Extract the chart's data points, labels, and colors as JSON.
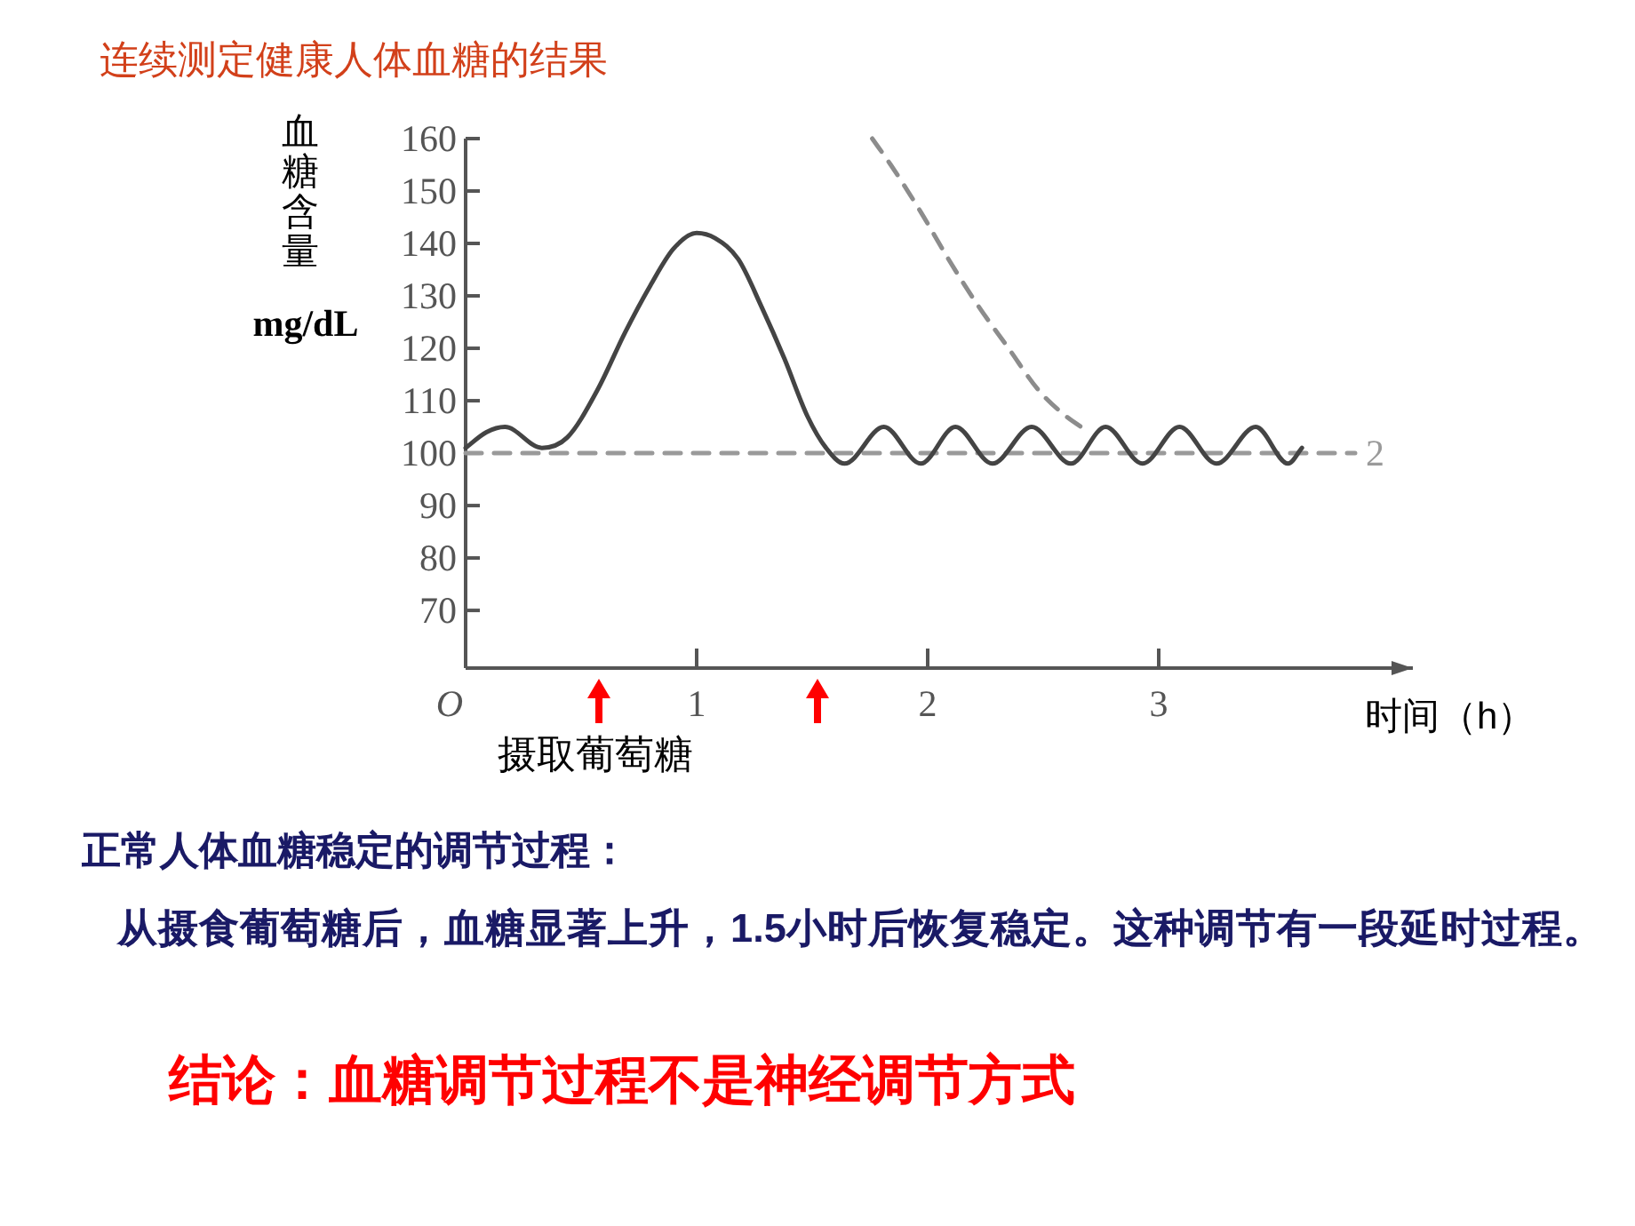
{
  "chart_data": {
    "type": "line",
    "title": "连续测定健康人体血糖的结果",
    "ylabel": "血糖含量 mg/dL",
    "xlabel": "时间（h）",
    "xlim": [
      0,
      4.1
    ],
    "xticks": [
      {
        "value": 0,
        "label": "O"
      },
      1,
      2,
      3
    ],
    "ylim": [
      59,
      160
    ],
    "yticks": [
      70,
      80,
      90,
      100,
      110,
      120,
      130,
      140,
      150,
      160
    ],
    "series": [
      {
        "color": "#444444",
        "x": [
          0,
          0.09,
          0.17,
          0.33,
          0.44,
          0.57,
          0.69,
          0.8,
          0.9,
          1.0,
          1.08,
          1.18,
          1.28,
          1.38,
          1.48,
          1.56,
          1.64,
          1.81,
          1.97,
          2.12,
          2.28,
          2.45,
          2.62,
          2.77,
          2.93,
          3.09,
          3.25,
          3.42,
          3.56,
          3.62
        ],
        "values": [
          101,
          104,
          105,
          101,
          103,
          112,
          123,
          132,
          139,
          142,
          141,
          137,
          128,
          118,
          107,
          101,
          98,
          105,
          98,
          105,
          98,
          105,
          98,
          105,
          98,
          105,
          98,
          105,
          98,
          101
        ]
      },
      {
        "color": "#8c8c8c",
        "line_style": "dashed",
        "x": [
          1.76,
          1.84,
          1.97,
          2.09,
          2.22,
          2.35,
          2.48,
          2.6,
          2.7
        ],
        "values": [
          160,
          155,
          146,
          137,
          128,
          120,
          112,
          107,
          104
        ]
      },
      {
        "name": "2",
        "color": "#9a9a9a",
        "line_style": "dashed",
        "x": [
          0,
          3.85
        ],
        "values": [
          100,
          100
        ]
      }
    ],
    "annotations": [
      "摄取葡萄糖",
      "正常人体血糖稳定的调节过程：",
      "从摄食葡萄糖后，血糖显著上升，1.5小时后恢复稳定。这种调节有一段延时过程。",
      "结论：血糖调节过程不是神经调节方式"
    ]
  }
}
